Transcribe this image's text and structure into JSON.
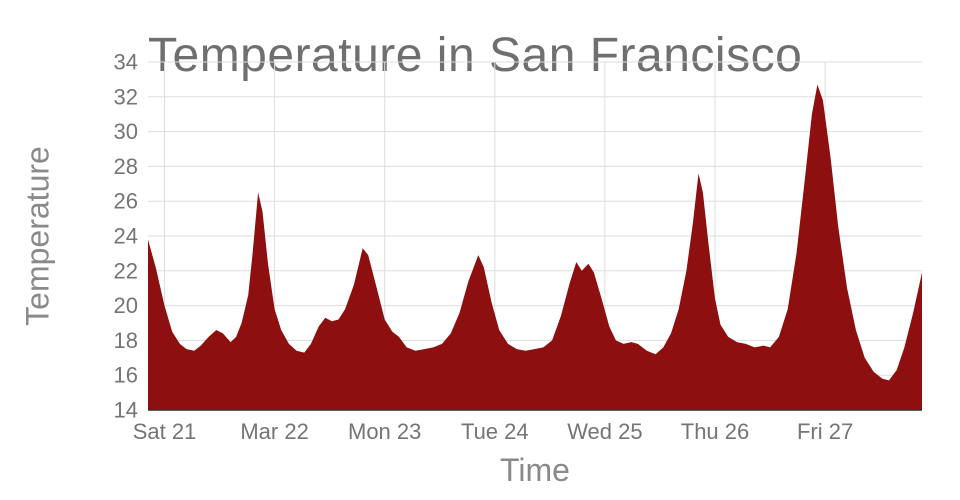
{
  "chart_data": {
    "type": "area",
    "title": "Temperature in San Francisco",
    "xlabel": "Time",
    "ylabel": "Temperature",
    "ylim": [
      14,
      34
    ],
    "y_ticks": [
      14,
      16,
      18,
      20,
      22,
      24,
      26,
      28,
      30,
      32,
      34
    ],
    "x_ticks": [
      {
        "pos": 0,
        "label": "Sat 21"
      },
      {
        "pos": 1,
        "label": "Mar 22"
      },
      {
        "pos": 2,
        "label": "Mon 23"
      },
      {
        "pos": 3,
        "label": "Tue 24"
      },
      {
        "pos": 4,
        "label": "Wed 25"
      },
      {
        "pos": 5,
        "label": "Thu 26"
      },
      {
        "pos": 6,
        "label": "Fri 27"
      }
    ],
    "legend": "none",
    "grid": "on",
    "area_color": "#8e0f0f",
    "grid_color": "#dddddd",
    "axis_color": "#2f2f2f",
    "text_color": "#757575",
    "points": [
      [
        -0.15,
        23.8
      ],
      [
        -0.08,
        22.2
      ],
      [
        0.0,
        20.0
      ],
      [
        0.07,
        18.5
      ],
      [
        0.14,
        17.8
      ],
      [
        0.2,
        17.5
      ],
      [
        0.27,
        17.4
      ],
      [
        0.33,
        17.7
      ],
      [
        0.4,
        18.2
      ],
      [
        0.47,
        18.6
      ],
      [
        0.53,
        18.4
      ],
      [
        0.6,
        17.9
      ],
      [
        0.65,
        18.2
      ],
      [
        0.7,
        19.0
      ],
      [
        0.76,
        20.6
      ],
      [
        0.8,
        23.0
      ],
      [
        0.85,
        26.5
      ],
      [
        0.89,
        25.4
      ],
      [
        0.94,
        22.4
      ],
      [
        1.0,
        19.8
      ],
      [
        1.06,
        18.6
      ],
      [
        1.13,
        17.8
      ],
      [
        1.2,
        17.4
      ],
      [
        1.27,
        17.3
      ],
      [
        1.33,
        17.8
      ],
      [
        1.4,
        18.8
      ],
      [
        1.46,
        19.3
      ],
      [
        1.52,
        19.1
      ],
      [
        1.58,
        19.2
      ],
      [
        1.64,
        19.8
      ],
      [
        1.72,
        21.2
      ],
      [
        1.8,
        23.3
      ],
      [
        1.85,
        22.9
      ],
      [
        1.92,
        21.2
      ],
      [
        2.0,
        19.2
      ],
      [
        2.07,
        18.5
      ],
      [
        2.13,
        18.2
      ],
      [
        2.2,
        17.6
      ],
      [
        2.28,
        17.4
      ],
      [
        2.36,
        17.5
      ],
      [
        2.44,
        17.6
      ],
      [
        2.52,
        17.8
      ],
      [
        2.6,
        18.4
      ],
      [
        2.68,
        19.6
      ],
      [
        2.76,
        21.4
      ],
      [
        2.85,
        22.9
      ],
      [
        2.9,
        22.2
      ],
      [
        2.97,
        20.2
      ],
      [
        3.04,
        18.6
      ],
      [
        3.12,
        17.8
      ],
      [
        3.2,
        17.5
      ],
      [
        3.28,
        17.4
      ],
      [
        3.36,
        17.5
      ],
      [
        3.44,
        17.6
      ],
      [
        3.52,
        18.0
      ],
      [
        3.6,
        19.4
      ],
      [
        3.68,
        21.3
      ],
      [
        3.74,
        22.5
      ],
      [
        3.79,
        22.0
      ],
      [
        3.85,
        22.4
      ],
      [
        3.9,
        21.9
      ],
      [
        3.97,
        20.4
      ],
      [
        4.04,
        18.8
      ],
      [
        4.1,
        18.0
      ],
      [
        4.17,
        17.8
      ],
      [
        4.24,
        17.9
      ],
      [
        4.3,
        17.8
      ],
      [
        4.38,
        17.4
      ],
      [
        4.46,
        17.2
      ],
      [
        4.53,
        17.6
      ],
      [
        4.6,
        18.4
      ],
      [
        4.67,
        19.8
      ],
      [
        4.74,
        22.0
      ],
      [
        4.8,
        24.8
      ],
      [
        4.85,
        27.6
      ],
      [
        4.89,
        26.5
      ],
      [
        4.94,
        23.6
      ],
      [
        5.0,
        20.4
      ],
      [
        5.05,
        18.9
      ],
      [
        5.12,
        18.2
      ],
      [
        5.2,
        17.9
      ],
      [
        5.28,
        17.8
      ],
      [
        5.36,
        17.6
      ],
      [
        5.44,
        17.7
      ],
      [
        5.5,
        17.6
      ],
      [
        5.58,
        18.2
      ],
      [
        5.66,
        19.8
      ],
      [
        5.74,
        23.0
      ],
      [
        5.82,
        27.5
      ],
      [
        5.88,
        31.0
      ],
      [
        5.93,
        32.7
      ],
      [
        5.98,
        31.8
      ],
      [
        6.05,
        28.5
      ],
      [
        6.12,
        24.5
      ],
      [
        6.2,
        21.0
      ],
      [
        6.28,
        18.6
      ],
      [
        6.36,
        17.0
      ],
      [
        6.44,
        16.2
      ],
      [
        6.52,
        15.8
      ],
      [
        6.58,
        15.7
      ],
      [
        6.65,
        16.3
      ],
      [
        6.72,
        17.6
      ],
      [
        6.8,
        19.6
      ],
      [
        6.88,
        21.9
      ]
    ]
  }
}
